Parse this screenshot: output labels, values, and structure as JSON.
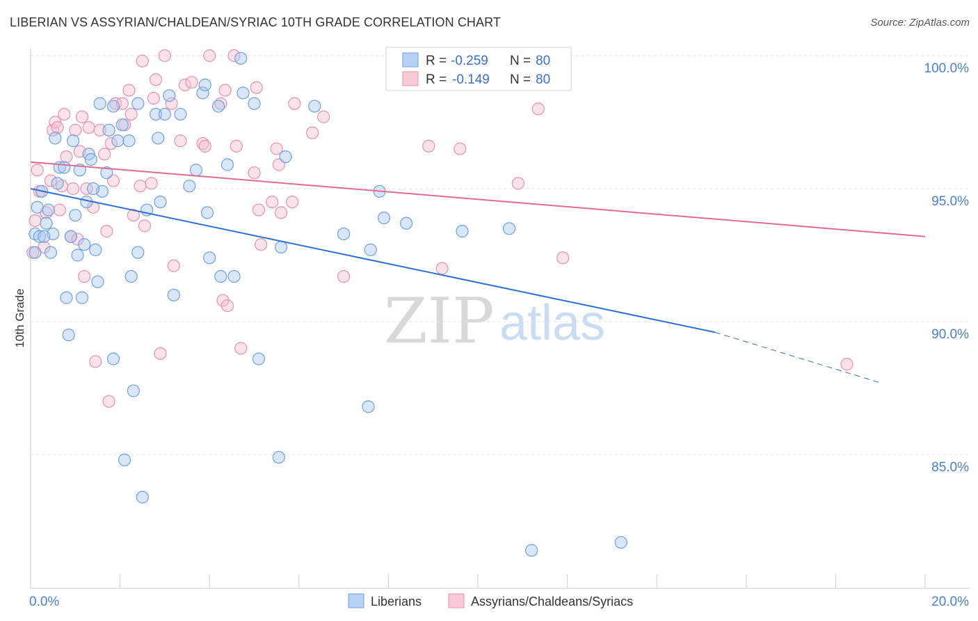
{
  "title": "LIBERIAN VS ASSYRIAN/CHALDEAN/SYRIAC 10TH GRADE CORRELATION CHART",
  "source": "Source: ZipAtlas.com",
  "watermark": {
    "zip": "ZIP",
    "atlas": "atlas"
  },
  "colors": {
    "blue_fill": "#a9c8f0",
    "blue_stroke": "#6f9fe0",
    "blue_line": "#2d6fd0",
    "pink_fill": "#f5bfd0",
    "pink_stroke": "#e890ad",
    "pink_line": "#e06a94",
    "grid": "#e2e2e2",
    "axis_text": "#4a7fd0"
  },
  "legend": {
    "r_label": "R =",
    "n_label": "N =",
    "rows": [
      {
        "r": "-0.259",
        "n": "80"
      },
      {
        "r": "-0.149",
        "n": "80"
      }
    ]
  },
  "bottom_legend": [
    "Liberians",
    "Assyrians/Chaldeans/Syriacs"
  ],
  "chart_data": {
    "type": "scatter",
    "title": "LIBERIAN VS ASSYRIAN/CHALDEAN/SYRIAC 10TH GRADE CORRELATION CHART",
    "xlabel": "",
    "ylabel": "10th Grade",
    "xlim": [
      0,
      20
    ],
    "ylim": [
      80.5,
      100.5
    ],
    "x_tick_labels": [
      "0.0%",
      "20.0%"
    ],
    "y_ticks": [
      85,
      90,
      95,
      100
    ],
    "y_tick_labels": [
      "85.0%",
      "90.0%",
      "95.0%",
      "100.0%"
    ],
    "grid": true,
    "series": [
      {
        "name": "Liberians",
        "r": -0.259,
        "n": 80,
        "trend": {
          "x0": 0,
          "y0": 95.0,
          "x1": 15.3,
          "y1": 89.6,
          "dash_x1": 19.0,
          "dash_y1": 87.7
        },
        "points": [
          [
            0.1,
            92.6
          ],
          [
            0.1,
            93.3
          ],
          [
            0.15,
            94.3
          ],
          [
            0.2,
            93.2
          ],
          [
            0.25,
            94.9
          ],
          [
            0.35,
            93.7
          ],
          [
            0.4,
            94.2
          ],
          [
            0.5,
            93.3
          ],
          [
            0.45,
            92.6
          ],
          [
            0.6,
            95.2
          ],
          [
            0.65,
            95.8
          ],
          [
            0.75,
            95.8
          ],
          [
            0.8,
            90.9
          ],
          [
            0.85,
            89.5
          ],
          [
            0.9,
            93.2
          ],
          [
            0.95,
            96.8
          ],
          [
            1.0,
            94.0
          ],
          [
            1.05,
            92.5
          ],
          [
            1.1,
            95.7
          ],
          [
            1.15,
            90.9
          ],
          [
            1.2,
            92.9
          ],
          [
            1.25,
            94.5
          ],
          [
            1.3,
            96.3
          ],
          [
            1.35,
            96.1
          ],
          [
            1.45,
            92.7
          ],
          [
            1.5,
            91.5
          ],
          [
            1.55,
            98.2
          ],
          [
            1.6,
            94.9
          ],
          [
            1.7,
            95.6
          ],
          [
            1.75,
            97.2
          ],
          [
            1.85,
            98.1
          ],
          [
            1.85,
            88.6
          ],
          [
            1.95,
            96.8
          ],
          [
            2.05,
            97.4
          ],
          [
            2.1,
            84.8
          ],
          [
            2.2,
            96.8
          ],
          [
            2.25,
            91.7
          ],
          [
            2.3,
            87.4
          ],
          [
            2.4,
            98.2
          ],
          [
            2.4,
            92.6
          ],
          [
            2.5,
            83.4
          ],
          [
            2.6,
            94.2
          ],
          [
            2.8,
            97.8
          ],
          [
            2.85,
            96.9
          ],
          [
            2.9,
            94.5
          ],
          [
            3.0,
            97.8
          ],
          [
            3.1,
            98.5
          ],
          [
            3.2,
            91.0
          ],
          [
            3.35,
            97.8
          ],
          [
            3.55,
            95.1
          ],
          [
            3.7,
            95.7
          ],
          [
            3.85,
            98.6
          ],
          [
            3.9,
            98.9
          ],
          [
            3.95,
            94.1
          ],
          [
            4.0,
            92.4
          ],
          [
            4.2,
            98.1
          ],
          [
            4.25,
            91.7
          ],
          [
            4.4,
            95.9
          ],
          [
            4.55,
            91.7
          ],
          [
            4.7,
            99.9
          ],
          [
            4.75,
            98.6
          ],
          [
            5.0,
            98.2
          ],
          [
            5.1,
            88.6
          ],
          [
            5.55,
            84.9
          ],
          [
            5.6,
            92.8
          ],
          [
            5.7,
            96.2
          ],
          [
            6.35,
            98.1
          ],
          [
            7.0,
            93.3
          ],
          [
            7.55,
            86.8
          ],
          [
            7.6,
            92.7
          ],
          [
            7.8,
            94.9
          ],
          [
            7.9,
            93.9
          ],
          [
            8.4,
            93.7
          ],
          [
            9.65,
            93.4
          ],
          [
            10.7,
            93.5
          ],
          [
            11.2,
            81.4
          ],
          [
            13.2,
            81.7
          ],
          [
            0.3,
            93.2
          ],
          [
            0.55,
            96.9
          ],
          [
            1.4,
            95.0
          ]
        ]
      },
      {
        "name": "Assyrians/Chaldeans/Syriacs",
        "r": -0.149,
        "n": 80,
        "trend": {
          "x0": 0,
          "y0": 96.0,
          "x1": 20,
          "y1": 93.2
        },
        "points": [
          [
            0.05,
            92.6
          ],
          [
            0.1,
            93.8
          ],
          [
            0.15,
            95.7
          ],
          [
            0.2,
            94.9
          ],
          [
            0.3,
            92.8
          ],
          [
            0.35,
            94.1
          ],
          [
            0.45,
            95.3
          ],
          [
            0.5,
            97.2
          ],
          [
            0.55,
            97.5
          ],
          [
            0.6,
            97.3
          ],
          [
            0.65,
            94.2
          ],
          [
            0.7,
            95.1
          ],
          [
            0.75,
            97.8
          ],
          [
            0.8,
            96.2
          ],
          [
            0.9,
            93.2
          ],
          [
            0.95,
            95.0
          ],
          [
            1.0,
            97.2
          ],
          [
            1.05,
            93.1
          ],
          [
            1.1,
            96.4
          ],
          [
            1.15,
            97.7
          ],
          [
            1.2,
            91.7
          ],
          [
            1.25,
            95.0
          ],
          [
            1.3,
            97.3
          ],
          [
            1.4,
            94.3
          ],
          [
            1.45,
            88.5
          ],
          [
            1.55,
            97.2
          ],
          [
            1.65,
            96.3
          ],
          [
            1.7,
            93.4
          ],
          [
            1.75,
            87.0
          ],
          [
            1.8,
            96.7
          ],
          [
            1.85,
            95.3
          ],
          [
            1.9,
            98.2
          ],
          [
            2.05,
            98.2
          ],
          [
            2.1,
            97.4
          ],
          [
            2.2,
            98.7
          ],
          [
            2.25,
            97.8
          ],
          [
            2.3,
            94.0
          ],
          [
            2.45,
            95.1
          ],
          [
            2.5,
            99.8
          ],
          [
            2.55,
            93.6
          ],
          [
            2.7,
            95.2
          ],
          [
            2.75,
            98.4
          ],
          [
            2.8,
            99.1
          ],
          [
            2.9,
            88.8
          ],
          [
            3.0,
            100.0
          ],
          [
            3.15,
            98.2
          ],
          [
            3.2,
            92.1
          ],
          [
            3.35,
            96.8
          ],
          [
            3.45,
            98.9
          ],
          [
            3.6,
            99.0
          ],
          [
            3.85,
            96.7
          ],
          [
            3.9,
            96.6
          ],
          [
            4.0,
            100.0
          ],
          [
            4.25,
            98.2
          ],
          [
            4.3,
            90.8
          ],
          [
            4.35,
            98.7
          ],
          [
            4.4,
            90.6
          ],
          [
            4.55,
            100.0
          ],
          [
            4.6,
            96.6
          ],
          [
            4.7,
            89.0
          ],
          [
            5.0,
            95.6
          ],
          [
            5.05,
            98.8
          ],
          [
            5.1,
            94.2
          ],
          [
            5.15,
            92.9
          ],
          [
            5.4,
            94.5
          ],
          [
            5.5,
            96.5
          ],
          [
            5.55,
            95.9
          ],
          [
            5.6,
            94.1
          ],
          [
            5.85,
            94.5
          ],
          [
            5.9,
            98.2
          ],
          [
            6.3,
            97.1
          ],
          [
            6.55,
            97.7
          ],
          [
            7.0,
            91.7
          ],
          [
            8.9,
            96.6
          ],
          [
            9.2,
            92.0
          ],
          [
            9.6,
            96.5
          ],
          [
            10.9,
            95.2
          ],
          [
            11.35,
            98.0
          ],
          [
            11.9,
            92.4
          ],
          [
            18.25,
            88.4
          ]
        ]
      }
    ]
  }
}
